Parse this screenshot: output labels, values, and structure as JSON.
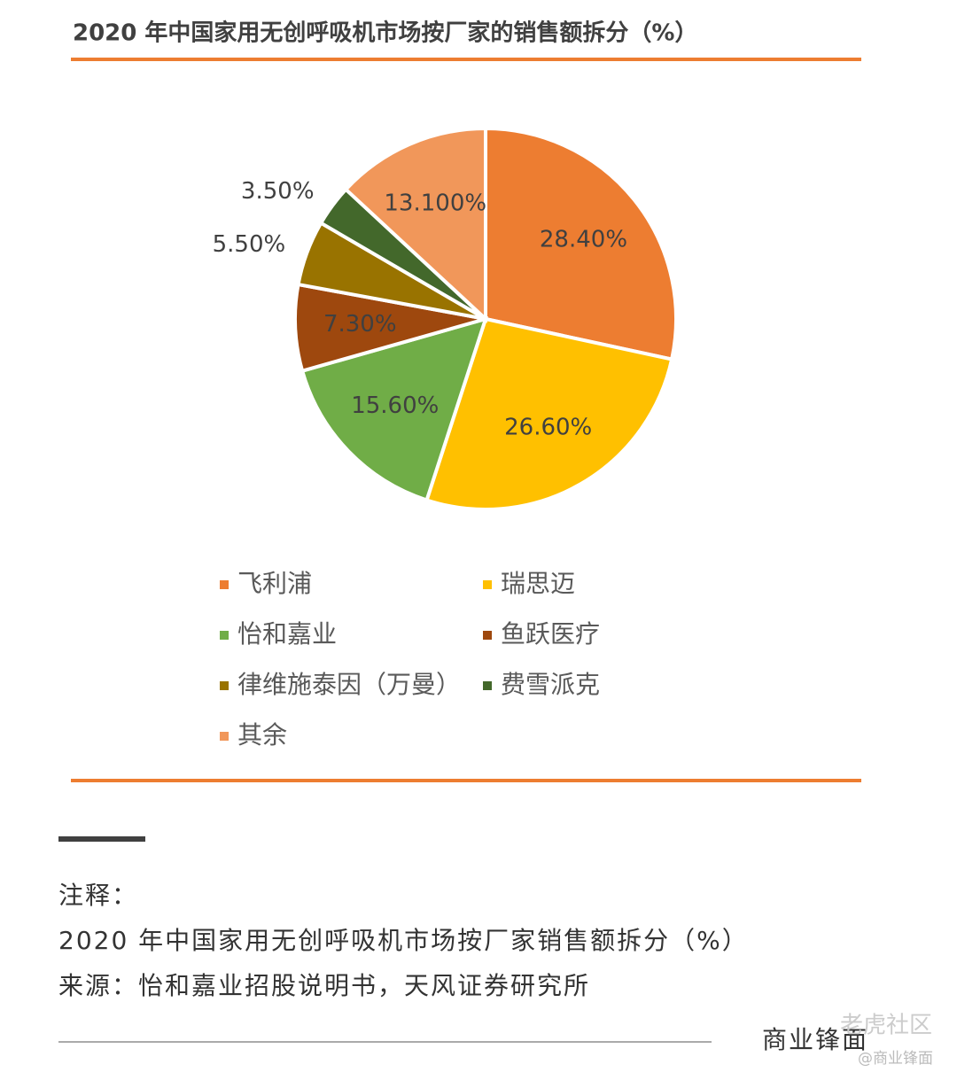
{
  "chart_data": {
    "type": "pie",
    "title": "2020 年中国家用无创呼吸机市场按厂家的销售额拆分（%）",
    "categories": [
      "飞利浦",
      "瑞思迈",
      "怡和嘉业",
      "鱼跃医疗",
      "律维施泰因（万曼）",
      "费雪派克",
      "其余"
    ],
    "values": [
      28.4,
      26.6,
      15.6,
      7.3,
      5.5,
      3.5,
      13.1
    ],
    "value_labels": [
      "28.40%",
      "26.60%",
      "15.60%",
      "7.30%",
      "5.50%",
      "3.50%",
      "13.100%"
    ],
    "colors": [
      "#ED7D31",
      "#FFC000",
      "#70AD47",
      "#9E480E",
      "#997300",
      "#43682B",
      "#F1975A"
    ]
  },
  "notes": {
    "label": "注释：",
    "caption": "2020 年中国家用无创呼吸机市场按厂家销售额拆分（%）",
    "source": "来源：怡和嘉业招股说明书，天风证券研究所"
  },
  "footer": {
    "brand": "商业锋面",
    "watermark": "老虎社区",
    "watermark_handle": "@商业锋面"
  }
}
